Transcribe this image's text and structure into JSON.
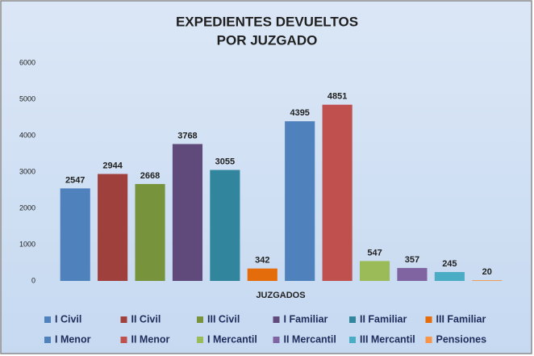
{
  "chart_data": {
    "type": "bar",
    "title": [
      "EXPEDIENTES DEVUELTOS",
      "POR JUZGADO"
    ],
    "x_label": "JUZGADOS",
    "categories": [
      "I Civil",
      "II Civil",
      "III Civil",
      "I Familiar",
      "II Familiar",
      "III Familiar",
      "I Menor",
      "II Menor",
      "I Mercantil",
      "II Mercantil",
      "III Mercantil",
      "Pensiones"
    ],
    "values": [
      2547,
      2944,
      2668,
      3768,
      3055,
      342,
      4395,
      4851,
      547,
      357,
      245,
      20
    ],
    "colors": [
      "#4f81bd",
      "#a0403c",
      "#77933c",
      "#604a7b",
      "#31859c",
      "#e46c0a",
      "#4f81bd",
      "#c0504d",
      "#9bbb59",
      "#8064a2",
      "#4bacc6",
      "#f79646"
    ],
    "ylim": [
      0,
      6000
    ],
    "yticks": [
      0,
      1000,
      2000,
      3000,
      4000,
      5000,
      6000
    ],
    "grid": false,
    "legend": "bottom"
  }
}
